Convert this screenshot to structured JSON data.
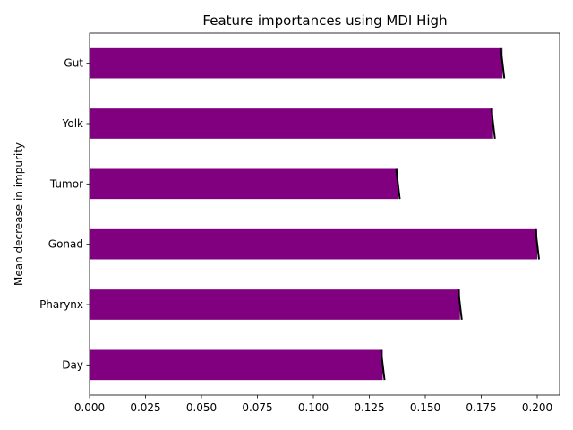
{
  "chart_data": {
    "type": "bar",
    "orientation": "horizontal",
    "title": "Feature importances using MDI High",
    "xlabel": "",
    "ylabel": "Mean decrease in impurity",
    "categories": [
      "Day",
      "Pharynx",
      "Gonad",
      "Tumor",
      "Yolk",
      "Gut"
    ],
    "values": [
      0.131,
      0.1655,
      0.2,
      0.1378,
      0.1803,
      0.1845
    ],
    "errors": [
      0.0008,
      0.0008,
      0.0008,
      0.0008,
      0.0008,
      0.0008
    ],
    "xlim": [
      0.0,
      0.21
    ],
    "xticks": [
      "0.000",
      "0.025",
      "0.050",
      "0.075",
      "0.100",
      "0.125",
      "0.150",
      "0.175",
      "0.200"
    ],
    "bar_color": "#800080",
    "error_color": "#000000",
    "grid": false,
    "legend": "none"
  }
}
